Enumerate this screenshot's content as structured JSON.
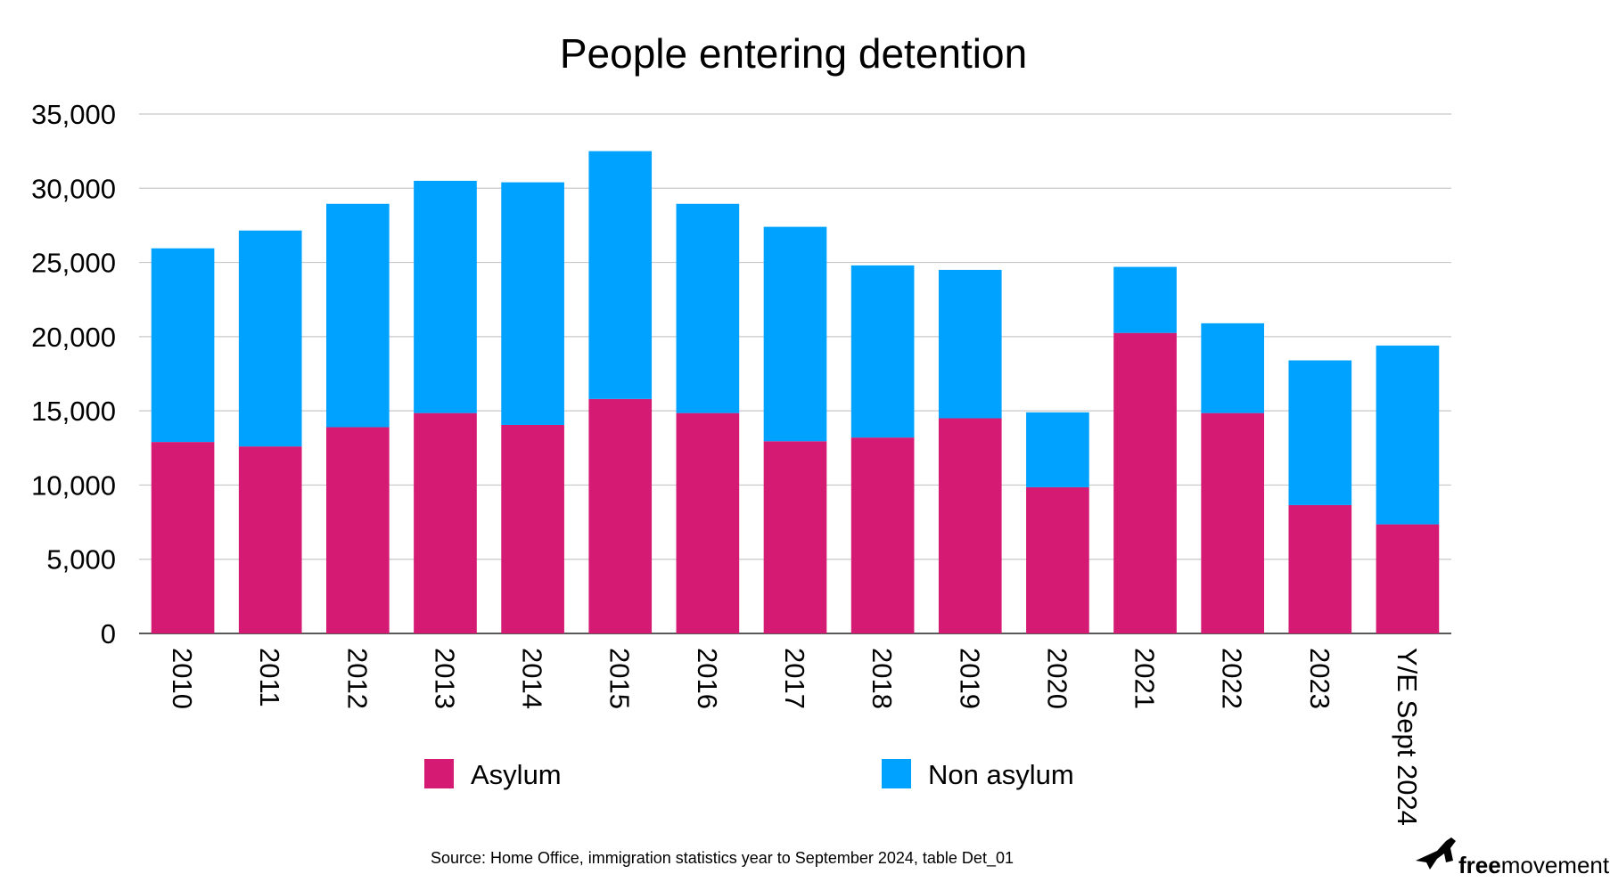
{
  "chart_data": {
    "type": "bar",
    "stacked": true,
    "title": "People entering detention",
    "xlabel": "",
    "ylabel": "",
    "categories": [
      "2010",
      "2011",
      "2012",
      "2013",
      "2014",
      "2015",
      "2016",
      "2017",
      "2018",
      "2019",
      "2020",
      "2021",
      "2022",
      "2023",
      "Y/E Sept 2024"
    ],
    "series": [
      {
        "name": "Asylum",
        "color": "#d41a73",
        "values": [
          12900,
          12600,
          13900,
          14850,
          14050,
          15800,
          14850,
          12950,
          13200,
          14500,
          9850,
          20250,
          14850,
          8650,
          7350
        ]
      },
      {
        "name": "Non asylum",
        "color": "#00a2ff",
        "values": [
          13050,
          14550,
          15050,
          15650,
          16350,
          16700,
          14100,
          14450,
          11600,
          10000,
          5050,
          4450,
          6050,
          9750,
          12050
        ]
      }
    ],
    "ylim": [
      0,
      35000
    ],
    "yticks": [
      0,
      5000,
      10000,
      15000,
      20000,
      25000,
      30000,
      35000
    ],
    "ytick_labels": [
      "0",
      "5,000",
      "10,000",
      "15,000",
      "20,000",
      "25,000",
      "30,000",
      "35,000"
    ],
    "grid": true,
    "legend_position": "bottom",
    "source": "Source: Home Office, immigration statistics year to September 2024, table Det_01"
  },
  "branding": {
    "logo_bold": "free",
    "logo_light": "movement",
    "logo_icon": "bird-icon"
  }
}
